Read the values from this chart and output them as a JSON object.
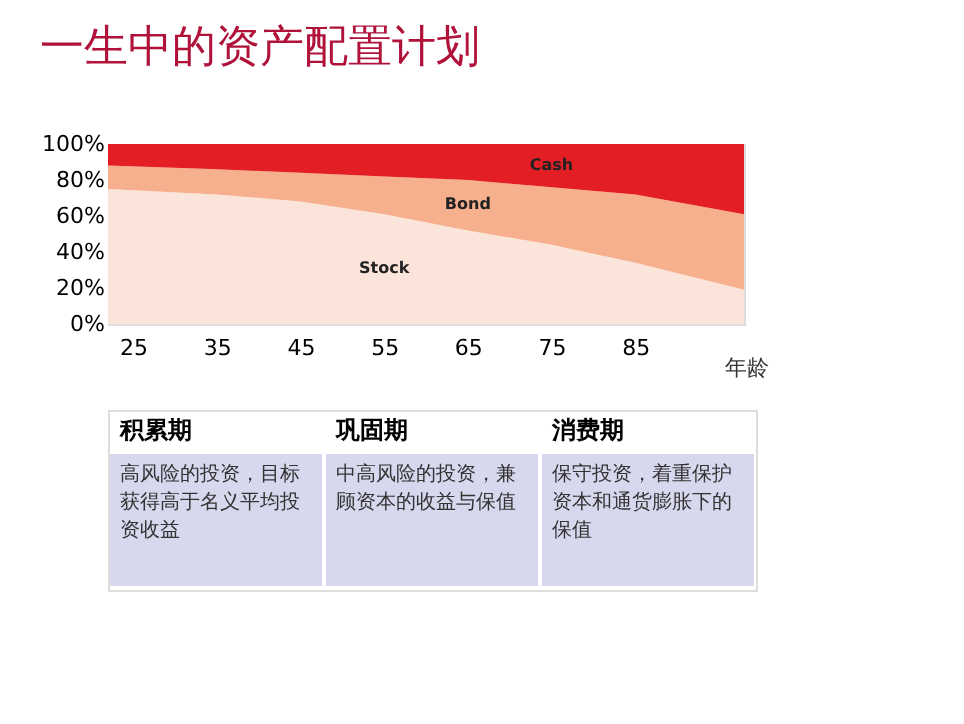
{
  "chart_data": {
    "type": "area",
    "stacked": true,
    "title": "一生中的资产配置计划",
    "xlabel": "年龄",
    "x": [
      22,
      35,
      45,
      55,
      65,
      75,
      85,
      98
    ],
    "series": [
      {
        "name": "Stock",
        "color": "#fbe5da",
        "values": [
          75,
          72,
          68,
          61,
          52,
          44,
          34,
          19
        ]
      },
      {
        "name": "Bond",
        "color": "#f6b08e",
        "values": [
          13,
          14,
          16,
          21,
          28,
          32,
          38,
          42
        ]
      },
      {
        "name": "Cash",
        "color": "#e31e24",
        "values": [
          12,
          14,
          16,
          18,
          20,
          24,
          28,
          39
        ]
      }
    ],
    "xlim": [
      22,
      98
    ],
    "xticks": [
      25,
      35,
      45,
      55,
      65,
      75,
      85
    ],
    "ylim": [
      0,
      100
    ],
    "yticks": [
      {
        "value": 0,
        "label": "0%"
      },
      {
        "value": 20,
        "label": "20%"
      },
      {
        "value": 40,
        "label": "40%"
      },
      {
        "value": 60,
        "label": "60%"
      },
      {
        "value": 80,
        "label": "80%"
      },
      {
        "value": 100,
        "label": "100%"
      }
    ],
    "grid": false,
    "legend": false,
    "annotations": [
      "积累期",
      "巩固期",
      "消费期",
      "高风险的投资，目标获得高于名义平均投资收益",
      "中高风险的投资，兼顾资本的收益与保值",
      "保守投资，着重保护资本和通货膨胀下的保值"
    ]
  }
}
